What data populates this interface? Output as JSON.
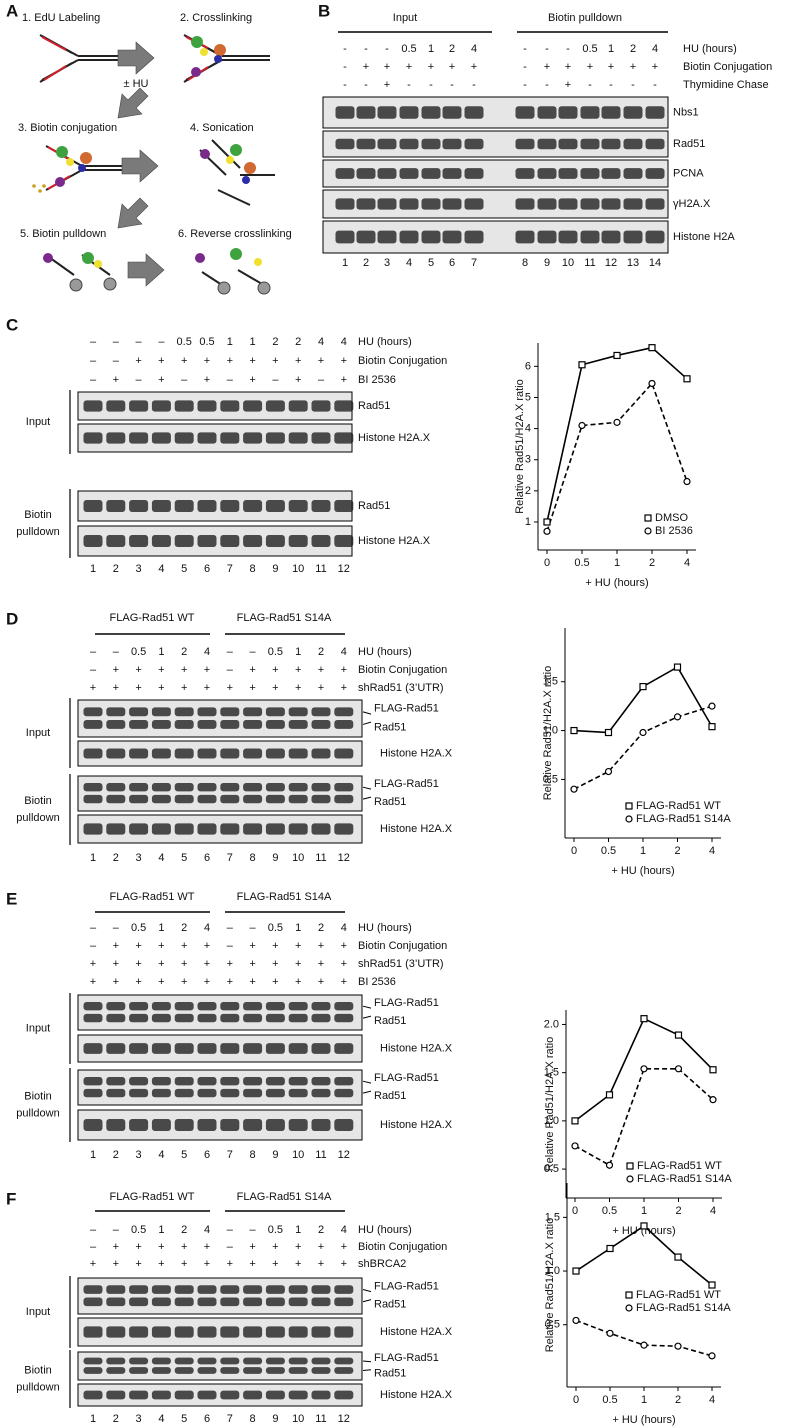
{
  "panels": {
    "A": {
      "letter": "A",
      "steps": [
        "1. EdU Labeling",
        "2. Crosslinking",
        "3. Biotin conjugation",
        "4. Sonication",
        "5. Biotin pulldown",
        "6. Reverse crosslinking"
      ],
      "hu_label": "± HU"
    },
    "B": {
      "letter": "B",
      "groups": [
        "Input",
        "Biotin pulldown"
      ],
      "conditions": [
        {
          "label": "HU (hours)",
          "values": [
            "-",
            "-",
            "-",
            "0.5",
            "1",
            "2",
            "4",
            "-",
            "-",
            "-",
            "0.5",
            "1",
            "2",
            "4"
          ]
        },
        {
          "label": "Biotin Conjugation",
          "values": [
            "-",
            "+",
            "+",
            "+",
            "+",
            "+",
            "+",
            "-",
            "+",
            "+",
            "+",
            "+",
            "+",
            "+"
          ]
        },
        {
          "label": "Thymidine Chase",
          "values": [
            "-",
            "-",
            "+",
            "-",
            "-",
            "-",
            "-",
            "-",
            "-",
            "+",
            "-",
            "-",
            "-",
            "-"
          ]
        }
      ],
      "sections": [
        {
          "blots": [
            [
              "Nbs1"
            ],
            [
              "Rad51"
            ],
            [
              "PCNA"
            ],
            [
              "γH2A.X"
            ],
            [
              "Histone H2A"
            ]
          ]
        }
      ],
      "lanes": [
        1,
        2,
        3,
        4,
        5,
        6,
        7,
        8,
        9,
        10,
        11,
        12,
        13,
        14
      ]
    },
    "C": {
      "letter": "C",
      "conditions": [
        {
          "label": "HU (hours)",
          "values": [
            "–",
            "–",
            "–",
            "–",
            "0.5",
            "0.5",
            "1",
            "1",
            "2",
            "2",
            "4",
            "4"
          ]
        },
        {
          "label": "Biotin Conjugation",
          "values": [
            "–",
            "–",
            "+",
            "+",
            "+",
            "+",
            "+",
            "+",
            "+",
            "+",
            "+",
            "+"
          ]
        },
        {
          "label": "BI 2536",
          "values": [
            "–",
            "+",
            "–",
            "+",
            "–",
            "+",
            "–",
            "+",
            "–",
            "+",
            "–",
            "+"
          ]
        }
      ],
      "sections": [
        {
          "label": [
            "Input"
          ],
          "blots": [
            [
              "Rad51"
            ],
            [
              "Histone H2A.X"
            ]
          ]
        },
        {
          "label": [
            "Biotin",
            "pulldown"
          ],
          "blots": [
            [
              "Rad51"
            ],
            [
              "Histone H2A.X"
            ]
          ]
        }
      ],
      "lanes": [
        1,
        2,
        3,
        4,
        5,
        6,
        7,
        8,
        9,
        10,
        11,
        12
      ]
    },
    "D": {
      "letter": "D",
      "groups": [
        "FLAG-Rad51 WT",
        "FLAG-Rad51 S14A"
      ],
      "conditions": [
        {
          "label": "HU (hours)",
          "values": [
            "–",
            "–",
            "0.5",
            "1",
            "2",
            "4",
            "–",
            "–",
            "0.5",
            "1",
            "2",
            "4"
          ]
        },
        {
          "label": "Biotin Conjugation",
          "values": [
            "–",
            "+",
            "+",
            "+",
            "+",
            "+",
            "–",
            "+",
            "+",
            "+",
            "+",
            "+"
          ]
        },
        {
          "label": "shRad51 (3’UTR)",
          "values": [
            "+",
            "+",
            "+",
            "+",
            "+",
            "+",
            "+",
            "+",
            "+",
            "+",
            "+",
            "+"
          ]
        }
      ],
      "sections": [
        {
          "label": [
            "Input"
          ],
          "blots": [
            [
              "FLAG-Rad51",
              "Rad51"
            ],
            [
              "Histone H2A.X"
            ]
          ]
        },
        {
          "label": [
            "Biotin",
            "pulldown"
          ],
          "blots": [
            [
              "FLAG-Rad51",
              "Rad51"
            ],
            [
              "Histone H2A.X"
            ]
          ]
        }
      ],
      "lanes": [
        1,
        2,
        3,
        4,
        5,
        6,
        7,
        8,
        9,
        10,
        11,
        12
      ]
    },
    "E": {
      "letter": "E",
      "groups": [
        "FLAG-Rad51 WT",
        "FLAG-Rad51 S14A"
      ],
      "conditions": [
        {
          "label": "HU (hours)",
          "values": [
            "–",
            "–",
            "0.5",
            "1",
            "2",
            "4",
            "–",
            "–",
            "0.5",
            "1",
            "2",
            "4"
          ]
        },
        {
          "label": "Biotin Conjugation",
          "values": [
            "–",
            "+",
            "+",
            "+",
            "+",
            "+",
            "–",
            "+",
            "+",
            "+",
            "+",
            "+"
          ]
        },
        {
          "label": "shRad51 (3’UTR)",
          "values": [
            "+",
            "+",
            "+",
            "+",
            "+",
            "+",
            "+",
            "+",
            "+",
            "+",
            "+",
            "+"
          ]
        },
        {
          "label": "BI 2536",
          "values": [
            "+",
            "+",
            "+",
            "+",
            "+",
            "+",
            "+",
            "+",
            "+",
            "+",
            "+",
            "+"
          ]
        }
      ],
      "sections": [
        {
          "label": [
            "Input"
          ],
          "blots": [
            [
              "FLAG-Rad51",
              "Rad51"
            ],
            [
              "Histone H2A.X"
            ]
          ]
        },
        {
          "label": [
            "Biotin",
            "pulldown"
          ],
          "blots": [
            [
              "FLAG-Rad51",
              "Rad51"
            ],
            [
              "Histone H2A.X"
            ]
          ]
        }
      ],
      "lanes": [
        1,
        2,
        3,
        4,
        5,
        6,
        7,
        8,
        9,
        10,
        11,
        12
      ]
    },
    "F": {
      "letter": "F",
      "groups": [
        "FLAG-Rad51 WT",
        "FLAG-Rad51 S14A"
      ],
      "conditions": [
        {
          "label": "HU (hours)",
          "values": [
            "–",
            "–",
            "0.5",
            "1",
            "2",
            "4",
            "–",
            "–",
            "0.5",
            "1",
            "2",
            "4"
          ]
        },
        {
          "label": "Biotin Conjugation",
          "values": [
            "–",
            "+",
            "+",
            "+",
            "+",
            "+",
            "–",
            "+",
            "+",
            "+",
            "+",
            "+"
          ]
        },
        {
          "label": "shBRCA2",
          "values": [
            "+",
            "+",
            "+",
            "+",
            "+",
            "+",
            "+",
            "+",
            "+",
            "+",
            "+",
            "+"
          ]
        }
      ],
      "sections": [
        {
          "label": [
            "Input"
          ],
          "blots": [
            [
              "FLAG-Rad51",
              "Rad51"
            ],
            [
              "Histone H2A.X"
            ]
          ]
        },
        {
          "label": [
            "Biotin",
            "pulldown"
          ],
          "blots": [
            [
              "FLAG-Rad51",
              "Rad51"
            ],
            [
              "Histone H2A.X"
            ]
          ]
        }
      ],
      "lanes": [
        1,
        2,
        3,
        4,
        5,
        6,
        7,
        8,
        9,
        10,
        11,
        12
      ]
    }
  },
  "chart_data": [
    {
      "type": "line",
      "x_label": "+ HU (hours)",
      "y_label": "Relative Rad51/H2A.X ratio",
      "categories": [
        "0",
        "0.5",
        "1",
        "2",
        "4"
      ],
      "ylim": [
        0.1,
        6.75
      ],
      "yticks": [
        1,
        2,
        3,
        4,
        5,
        6
      ],
      "legend": "lower right",
      "series": [
        {
          "name": "DMSO",
          "color": "#000000",
          "marker": "square",
          "line_style": "solid",
          "values": [
            1.0,
            6.05,
            6.35,
            6.6,
            5.6
          ]
        },
        {
          "name": "BI 2536",
          "color": "#000000",
          "marker": "circle",
          "line_style": "dashed",
          "values": [
            0.7,
            4.1,
            4.2,
            5.45,
            2.3
          ]
        }
      ]
    },
    {
      "type": "line",
      "x_label": "+ HU (hours)",
      "y_label": "Relative Rad51/H2A.X ratio",
      "categories": [
        "0",
        "0.5",
        "1",
        "2",
        "4"
      ],
      "ylim": [
        -0.1,
        2.05
      ],
      "yticks": [
        0.5,
        {
          "value": 1,
          "label": "1.0"
        },
        1.5
      ],
      "legend": "lower right",
      "series": [
        {
          "name": "FLAG-Rad51 WT",
          "color": "#000000",
          "marker": "square",
          "line_style": "solid",
          "values": [
            1.0,
            0.98,
            1.45,
            1.65,
            1.04
          ]
        },
        {
          "name": "FLAG-Rad51 S14A",
          "color": "#000000",
          "marker": "circle",
          "line_style": "dashed",
          "values": [
            0.4,
            0.58,
            0.98,
            1.14,
            1.25
          ]
        }
      ]
    },
    {
      "type": "line",
      "x_label": "+ HU (hours)",
      "y_label": "Relative Rad51/H2A.X ratio",
      "categories": [
        "0",
        "0.5",
        "1",
        "2",
        "4"
      ],
      "ylim": [
        0.2,
        2.15
      ],
      "yticks": [
        0.5,
        {
          "value": 1,
          "label": "1.0"
        },
        1.5,
        {
          "value": 2,
          "label": "2.0"
        }
      ],
      "legend": "lower right",
      "series": [
        {
          "name": "FLAG-Rad51 WT",
          "color": "#000000",
          "marker": "square",
          "line_style": "solid",
          "values": [
            1.0,
            1.27,
            2.06,
            1.89,
            1.53
          ]
        },
        {
          "name": "FLAG-Rad51 S14A",
          "color": "#000000",
          "marker": "circle",
          "line_style": "dashed",
          "values": [
            0.74,
            0.54,
            1.54,
            1.54,
            1.22
          ]
        }
      ]
    },
    {
      "type": "line",
      "x_label": "+ HU (hours)",
      "y_label": "Relative Rad51/H2A.X ratio",
      "categories": [
        "0",
        "0.5",
        "1",
        "2",
        "4"
      ],
      "ylim": [
        -0.08,
        1.82
      ],
      "yticks": [
        0.5,
        {
          "value": 1,
          "label": "1.0"
        },
        1.5
      ],
      "legend": "center right",
      "series": [
        {
          "name": "FLAG-Rad51 WT",
          "color": "#000000",
          "marker": "square",
          "line_style": "solid",
          "values": [
            1.0,
            1.21,
            1.42,
            1.13,
            0.87
          ]
        },
        {
          "name": "FLAG-Rad51 S14A",
          "color": "#000000",
          "marker": "circle",
          "line_style": "dashed",
          "values": [
            0.54,
            0.42,
            0.31,
            0.3,
            0.21
          ]
        }
      ]
    }
  ]
}
